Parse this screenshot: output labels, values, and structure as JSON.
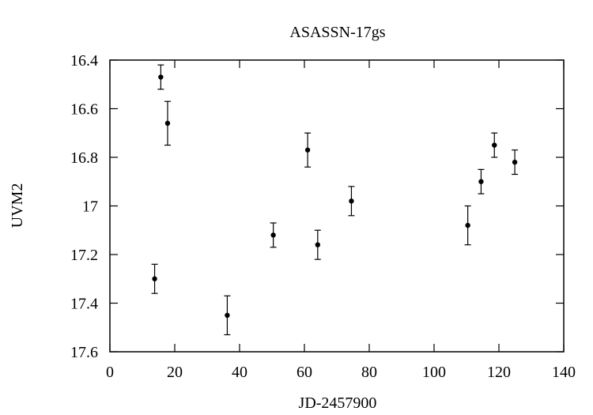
{
  "chart_data": {
    "type": "scatter",
    "title": "ASASSN-17gs",
    "xlabel": "JD-2457900",
    "ylabel": "UVM2",
    "xlim": [
      0,
      140
    ],
    "ylim": [
      16.4,
      17.6
    ],
    "y_inverted": true,
    "grid": false,
    "legend": "none",
    "x_ticks": [
      0,
      20,
      40,
      60,
      80,
      100,
      120,
      140
    ],
    "y_ticks": [
      16.4,
      16.6,
      16.8,
      17,
      17.2,
      17.4,
      17.6
    ],
    "x_tick_labels": [
      "0",
      "20",
      "40",
      "60",
      "80",
      "100",
      "120",
      "140"
    ],
    "y_tick_labels": [
      "16.4",
      "16.6",
      "16.8",
      "17",
      "17.2",
      "17.4",
      "17.6"
    ],
    "series": [
      {
        "points": [
          {
            "x": 13.8,
            "y": 17.3,
            "err": 0.06
          },
          {
            "x": 15.7,
            "y": 16.47,
            "err": 0.05
          },
          {
            "x": 17.8,
            "y": 16.66,
            "err": 0.09
          },
          {
            "x": 36.2,
            "y": 17.45,
            "err": 0.08
          },
          {
            "x": 50.4,
            "y": 17.12,
            "err": 0.05
          },
          {
            "x": 61.0,
            "y": 16.77,
            "err": 0.07
          },
          {
            "x": 64.1,
            "y": 17.16,
            "err": 0.06
          },
          {
            "x": 74.5,
            "y": 16.98,
            "err": 0.06
          },
          {
            "x": 110.4,
            "y": 17.08,
            "err": 0.08
          },
          {
            "x": 114.5,
            "y": 16.9,
            "err": 0.05
          },
          {
            "x": 118.6,
            "y": 16.75,
            "err": 0.05
          },
          {
            "x": 124.9,
            "y": 16.82,
            "err": 0.05
          }
        ]
      }
    ]
  }
}
